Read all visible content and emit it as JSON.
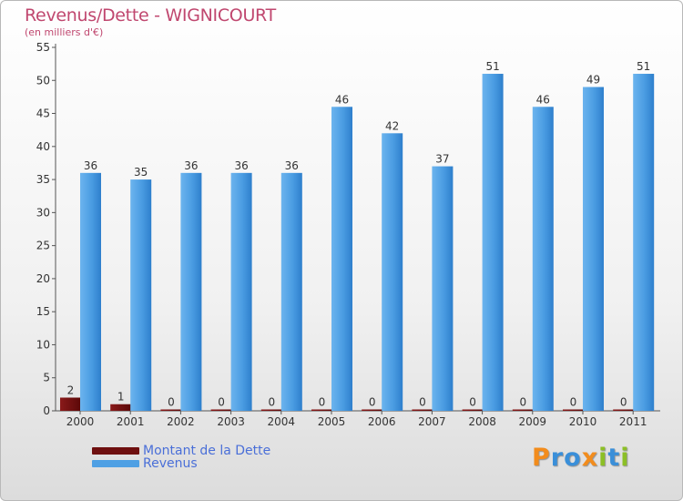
{
  "chart_data": {
    "type": "bar",
    "title": "Revenus/Dette - WIGNICOURT",
    "subtitle": "(en milliers d'€)",
    "categories": [
      "2000",
      "2001",
      "2002",
      "2003",
      "2004",
      "2005",
      "2006",
      "2007",
      "2008",
      "2009",
      "2010",
      "2011"
    ],
    "series": [
      {
        "name": "Montant de la Dette",
        "color": "#6e0f0f",
        "values": [
          2,
          1,
          0,
          0,
          0,
          0,
          0,
          0,
          0,
          0,
          0,
          0
        ]
      },
      {
        "name": "Revenus",
        "color": "#4fa0e4",
        "values": [
          36,
          35,
          36,
          36,
          36,
          46,
          42,
          37,
          51,
          46,
          49,
          51
        ]
      }
    ],
    "y_ticks": [
      0,
      5,
      10,
      15,
      20,
      25,
      30,
      35,
      40,
      45,
      50,
      55
    ],
    "ylim": [
      0,
      55
    ],
    "grid": false,
    "legend_position": "bottom-left"
  },
  "logo": {
    "text": "Proxiti",
    "letters": [
      {
        "ch": "P",
        "color": "#f28c1c"
      },
      {
        "ch": "r",
        "color": "#3a8fd9"
      },
      {
        "ch": "o",
        "color": "#3a8fd9"
      },
      {
        "ch": "x",
        "color": "#f28c1c"
      },
      {
        "ch": "i",
        "color": "#8cbf26"
      },
      {
        "ch": "t",
        "color": "#3a8fd9"
      },
      {
        "ch": "i",
        "color": "#8cbf26"
      }
    ]
  }
}
